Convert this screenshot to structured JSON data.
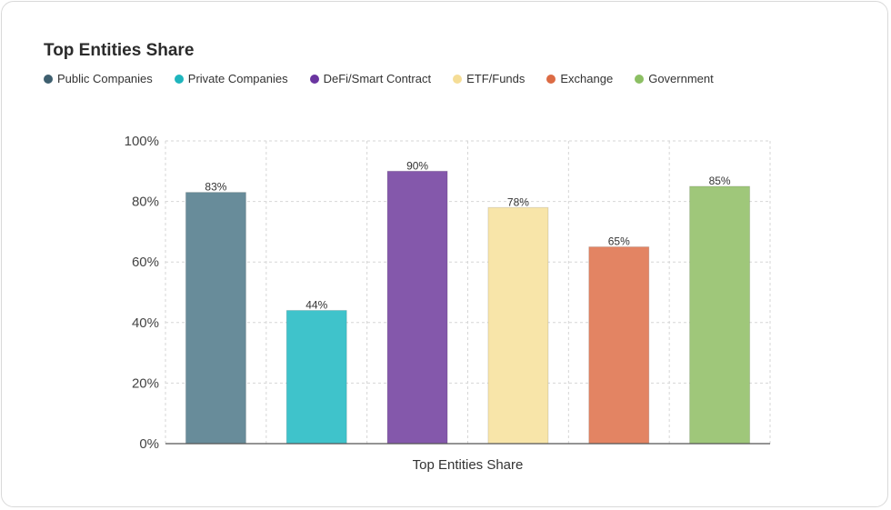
{
  "card": {
    "title": "Top Entities Share"
  },
  "colors": {
    "grid": "#d6d6d6",
    "axis": "#555555"
  },
  "chart_data": {
    "type": "bar",
    "title": "Top Entities Share",
    "xlabel": "Top Entities Share",
    "ylabel": "",
    "ylim": [
      0,
      100
    ],
    "yticks": [
      0,
      20,
      40,
      60,
      80,
      100
    ],
    "ytick_labels": [
      "0%",
      "20%",
      "40%",
      "60%",
      "80%",
      "100%"
    ],
    "grid": true,
    "legend_position": "top-left",
    "series": [
      {
        "name": "Public Companies",
        "value": 83,
        "label": "83%",
        "color": "#688c9a",
        "legend_color": "#3e5f6f"
      },
      {
        "name": "Private Companies",
        "value": 44,
        "label": "44%",
        "color": "#3fc3cb",
        "legend_color": "#1fb5bd"
      },
      {
        "name": "DeFi/Smart Contract",
        "value": 90,
        "label": "90%",
        "color": "#8458ab",
        "legend_color": "#6a35a0"
      },
      {
        "name": "ETF/Funds",
        "value": 78,
        "label": "78%",
        "color": "#f8e5a9",
        "legend_color": "#f5dd96"
      },
      {
        "name": "Exchange",
        "value": 65,
        "label": "65%",
        "color": "#e38463",
        "legend_color": "#dc6b44"
      },
      {
        "name": "Government",
        "value": 85,
        "label": "85%",
        "color": "#9fc77a",
        "legend_color": "#8cbf63"
      }
    ]
  }
}
